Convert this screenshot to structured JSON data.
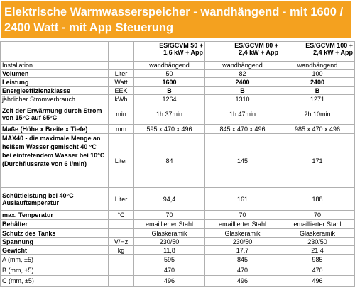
{
  "header": {
    "title": "Elektrische Warmwasserspeicher - wandhängend - mit 1600 / 2400 Watt - mit App Steuerung"
  },
  "table": {
    "columns": [
      "ES/GCVM 50 + 1,6 kW + App",
      "ES/GCVM 80 + 2,4 kW + App",
      "ES/GCVM 100 + 2,4 kW + App"
    ],
    "rows": [
      [
        "Installation",
        "",
        "wandhängend",
        "wandhängend",
        "wandhängend"
      ],
      [
        "Volumen",
        "Liter",
        "50",
        "82",
        "100"
      ],
      [
        "Leistung",
        "Watt",
        "1600",
        "2400",
        "2400"
      ],
      [
        "Energieeffizienzklasse",
        "EEK",
        "B",
        "B",
        "B"
      ],
      [
        "jährlicher Stromverbrauch",
        "kWh",
        "1264",
        "1310",
        "1271"
      ],
      [
        "Zeit der Erwärmung durch Strom von 15°C auf 65°C",
        "min",
        "1h 37min",
        "1h 47min",
        "2h 10min"
      ],
      [
        "Maße (Höhe x Breite x Tiefe)",
        "mm",
        "595 x 470 x 496",
        "845 x 470 x 496",
        "985 x 470 x 496"
      ],
      [
        "MAX40 - die maximale Menge an heißem Wasser gemischt 40 °C bei eintretendem Wasser bei 10°C (Durchflussrate von 6 l/min)",
        "Liter",
        "84",
        "145",
        "171"
      ],
      [
        "Schüttleistung bei 40°C Auslauftemperatur",
        "Liter",
        "94,4",
        "161",
        "188"
      ],
      [
        "max. Temperatur",
        "°C",
        "70",
        "70",
        "70"
      ],
      [
        "Behälter",
        "",
        "emaillierter Stahl",
        "emaillierter Stahl",
        "emaillierter Stahl"
      ],
      [
        "Schutz des Tanks",
        "",
        "Glaskeramik",
        "Glaskeramik",
        "Glaskeramik"
      ],
      [
        "Spannung",
        "V/Hz",
        "230/50",
        "230/50",
        "230/50"
      ],
      [
        "Gewicht",
        "kg",
        "11,8",
        "17,7",
        "21,4"
      ],
      [
        "A (mm, ±5)",
        "",
        "595",
        "845",
        "985"
      ],
      [
        "B (mm, ±5)",
        "",
        "470",
        "470",
        "470"
      ],
      [
        "C (mm, ±5)",
        "",
        "496",
        "496",
        "496"
      ]
    ]
  }
}
